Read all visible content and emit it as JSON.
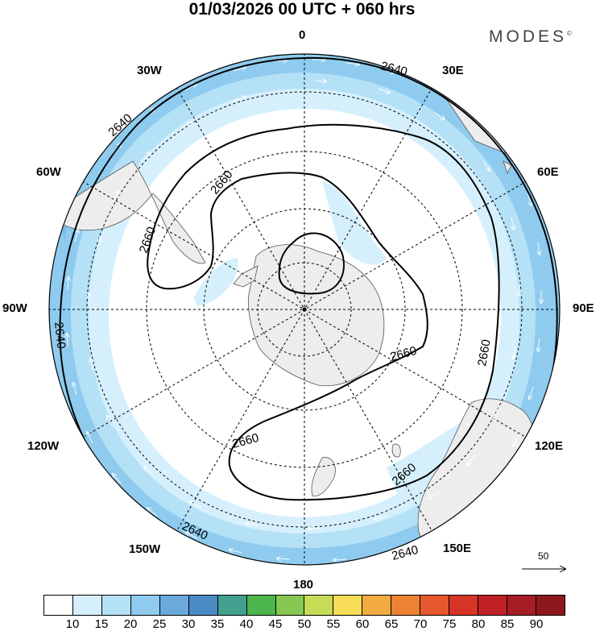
{
  "title": "01/03/2026  00 UTC  + 060 hrs",
  "brand": {
    "name": "MODES",
    "mark": "©"
  },
  "map": {
    "projection": "south polar stereographic",
    "field": "500 hPa geopotential height (contours) with wind speed (shaded) and wind vectors",
    "meridian_labels": {
      "m0": "0",
      "m30e": "30E",
      "m60e": "60E",
      "m90e": "90E",
      "m120e": "120E",
      "m150e": "150E",
      "m180": "180",
      "m150w": "150W",
      "m120w": "120W",
      "m90w": "90W",
      "m60w": "60W",
      "m30w": "30W"
    },
    "contour_labels": [
      "2640",
      "2640",
      "2640",
      "2640",
      "2640",
      "2660",
      "2660",
      "2660",
      "2660",
      "2660",
      "2660"
    ],
    "reference_vector": "50"
  },
  "colorbar": {
    "colors": [
      "#ffffff",
      "#d5f0fc",
      "#b5e1f7",
      "#8ecbef",
      "#6ba9dc",
      "#4b8bc5",
      "#43a08f",
      "#4cb54d",
      "#86c751",
      "#c6dc57",
      "#f7dd57",
      "#f1ab40",
      "#ed8232",
      "#e6582d",
      "#d63427",
      "#bf2126",
      "#a71d24",
      "#8c181d"
    ],
    "tick_labels": [
      "10",
      "15",
      "20",
      "25",
      "30",
      "35",
      "40",
      "45",
      "50",
      "55",
      "60",
      "65",
      "70",
      "75",
      "80",
      "85",
      "90"
    ]
  }
}
